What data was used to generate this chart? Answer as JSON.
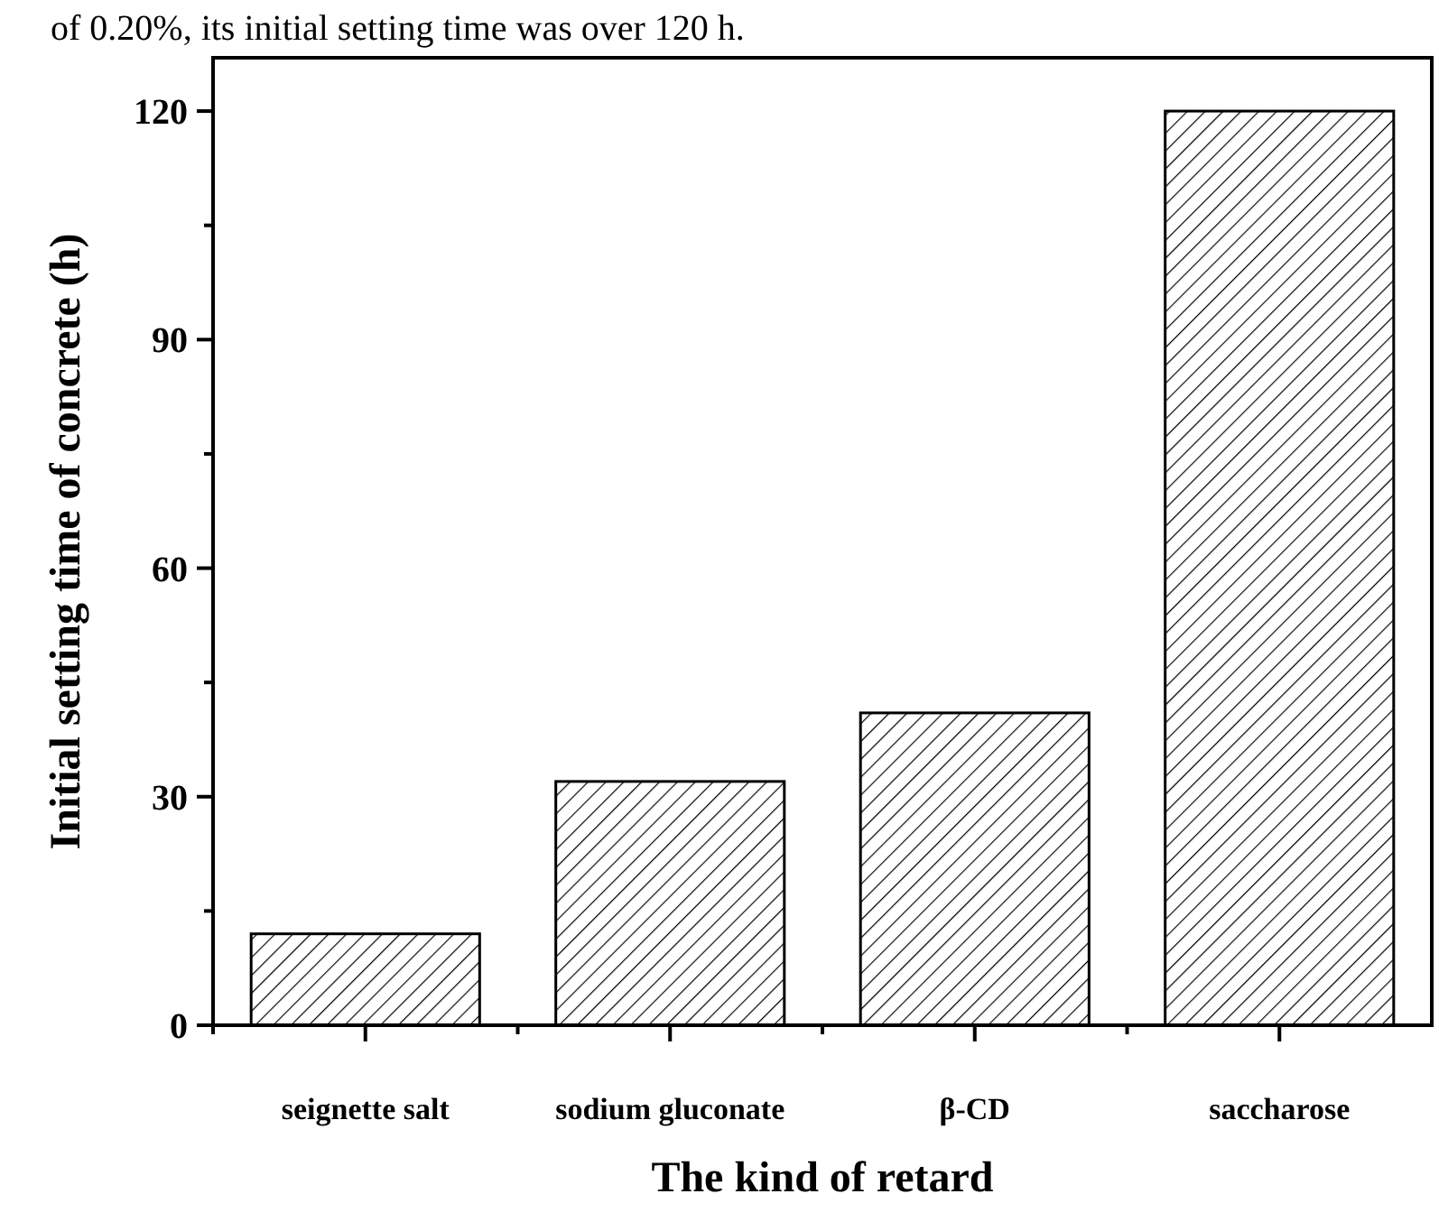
{
  "chart_data": {
    "type": "bar",
    "annotations": [
      "of 0.20%, its initial setting time was over 120 h."
    ],
    "xlabel": "The kind of retard",
    "ylabel": "Initial setting time of concrete (h)",
    "categories": [
      "seignette salt",
      "sodium gluconate",
      "β-CD",
      "saccharose"
    ],
    "values": [
      12,
      32,
      41,
      120
    ],
    "color": "#000000",
    "ylim": [
      0,
      127
    ],
    "yticks": [
      0,
      {
        "value": 15,
        "label": null
      },
      30,
      {
        "value": 45,
        "label": null
      },
      60,
      {
        "value": 75,
        "label": null
      },
      90,
      {
        "value": 105,
        "label": null
      },
      120
    ],
    "grid": false
  }
}
